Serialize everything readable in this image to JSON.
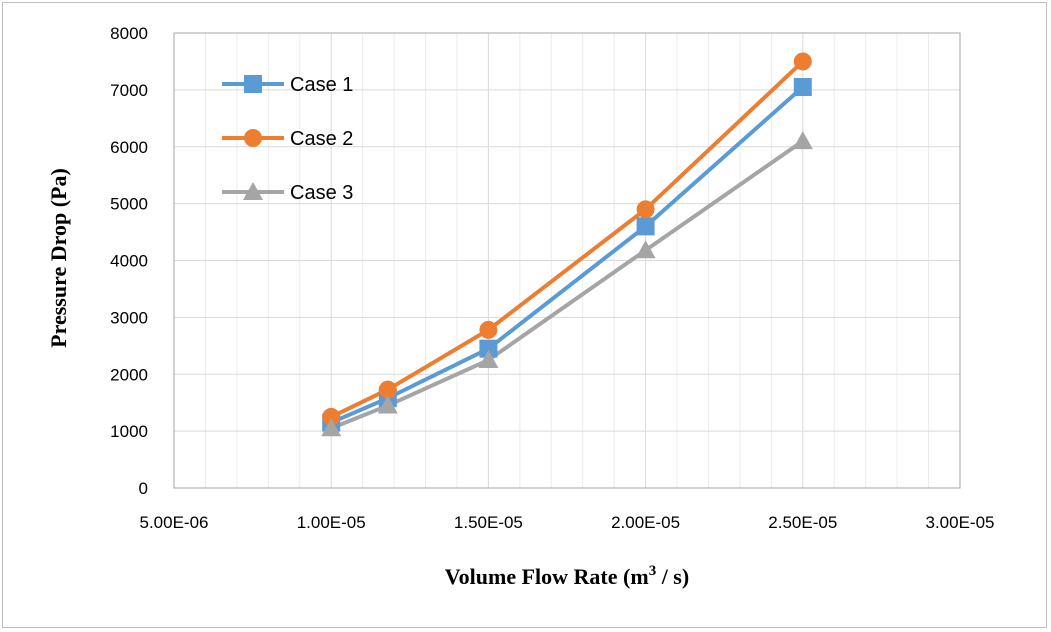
{
  "chart_data": {
    "type": "line",
    "title": "",
    "xlabel": "Volume Flow Rate (m",
    "xlabel_sup": "3",
    "xlabel_tail": " / s)",
    "ylabel": "Pressure Drop (Pa)",
    "xlim": [
      5e-06,
      3e-05
    ],
    "ylim": [
      0,
      8000
    ],
    "x_ticks": [
      5e-06,
      1e-05,
      1.5e-05,
      2e-05,
      2.5e-05,
      3e-05
    ],
    "x_tick_labels": [
      "5.00E-06",
      "1.00E-05",
      "1.50E-05",
      "2.00E-05",
      "2.50E-05",
      "3.00E-05"
    ],
    "y_ticks": [
      0,
      1000,
      2000,
      3000,
      4000,
      5000,
      6000,
      7000,
      8000
    ],
    "y_tick_labels": [
      "0",
      "1000",
      "2000",
      "3000",
      "4000",
      "5000",
      "6000",
      "7000",
      "8000"
    ],
    "grid": true,
    "legend_position": "top-left",
    "x": [
      1e-05,
      1.18e-05,
      1.5e-05,
      2e-05,
      2.5e-05
    ],
    "series": [
      {
        "name": "Case 1",
        "color": "#5B9BD5",
        "marker": "square",
        "values": [
          1150,
          1580,
          2450,
          4600,
          7050
        ]
      },
      {
        "name": "Case 2",
        "color": "#ED7D31",
        "marker": "circle",
        "values": [
          1250,
          1730,
          2780,
          4900,
          7500
        ]
      },
      {
        "name": "Case 3",
        "color": "#A5A5A5",
        "marker": "triangle",
        "values": [
          1050,
          1450,
          2250,
          4180,
          6100
        ]
      }
    ]
  }
}
